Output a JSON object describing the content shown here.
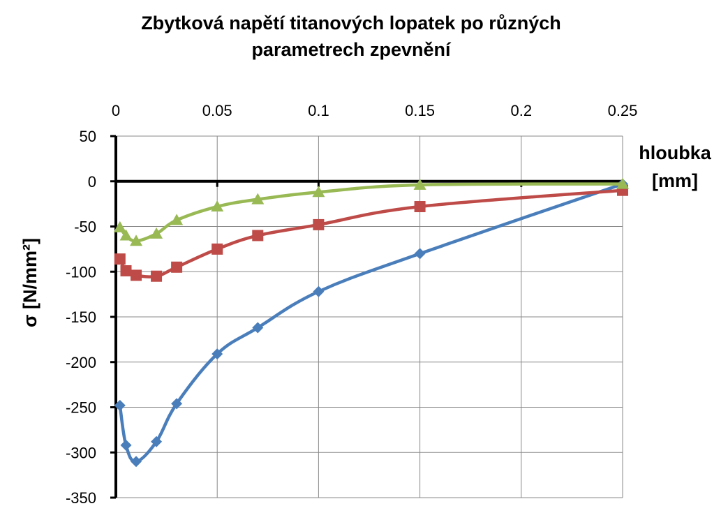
{
  "chart_data": {
    "type": "line",
    "title_lines": [
      "Zbytková napětí titanových lopatek po různých",
      "parametrech zpevnění"
    ],
    "xlabel_lines": [
      "hloubka",
      "[mm]"
    ],
    "ylabel": "σ [N/mm²]",
    "xlim": [
      0,
      0.25
    ],
    "ylim": [
      -350,
      50
    ],
    "x_ticks": [
      0,
      0.05,
      0.1,
      0.15,
      0.2,
      0.25
    ],
    "x_tick_labels": [
      "0",
      "0.05",
      "0.1",
      "0.15",
      "0.2",
      "0.25"
    ],
    "y_ticks": [
      50,
      0,
      -50,
      -100,
      -150,
      -200,
      -250,
      -300,
      -350
    ],
    "y_tick_labels": [
      "50",
      "0",
      "-50",
      "-100",
      "-150",
      "-200",
      "-250",
      "-300",
      "-350"
    ],
    "x_axis_position": "top",
    "grid": true,
    "series": [
      {
        "marker": "diamond",
        "color": "#4a7ebb",
        "points": [
          [
            0.002,
            -248
          ],
          [
            0.005,
            -292
          ],
          [
            0.01,
            -310
          ],
          [
            0.02,
            -288
          ],
          [
            0.03,
            -246
          ],
          [
            0.05,
            -191
          ],
          [
            0.07,
            -162
          ],
          [
            0.1,
            -122
          ],
          [
            0.15,
            -80
          ],
          [
            0.25,
            -3
          ]
        ]
      },
      {
        "marker": "square",
        "color": "#be4b48",
        "points": [
          [
            0.002,
            -86
          ],
          [
            0.005,
            -99
          ],
          [
            0.01,
            -104
          ],
          [
            0.02,
            -105
          ],
          [
            0.03,
            -95
          ],
          [
            0.05,
            -75
          ],
          [
            0.07,
            -60
          ],
          [
            0.1,
            -48
          ],
          [
            0.15,
            -28
          ],
          [
            0.25,
            -10
          ]
        ]
      },
      {
        "marker": "triangle",
        "color": "#98b954",
        "points": [
          [
            0.002,
            -51
          ],
          [
            0.005,
            -60
          ],
          [
            0.01,
            -66
          ],
          [
            0.02,
            -58
          ],
          [
            0.03,
            -43
          ],
          [
            0.05,
            -28
          ],
          [
            0.07,
            -20
          ],
          [
            0.1,
            -12
          ],
          [
            0.15,
            -4
          ],
          [
            0.25,
            -3
          ]
        ]
      }
    ]
  }
}
